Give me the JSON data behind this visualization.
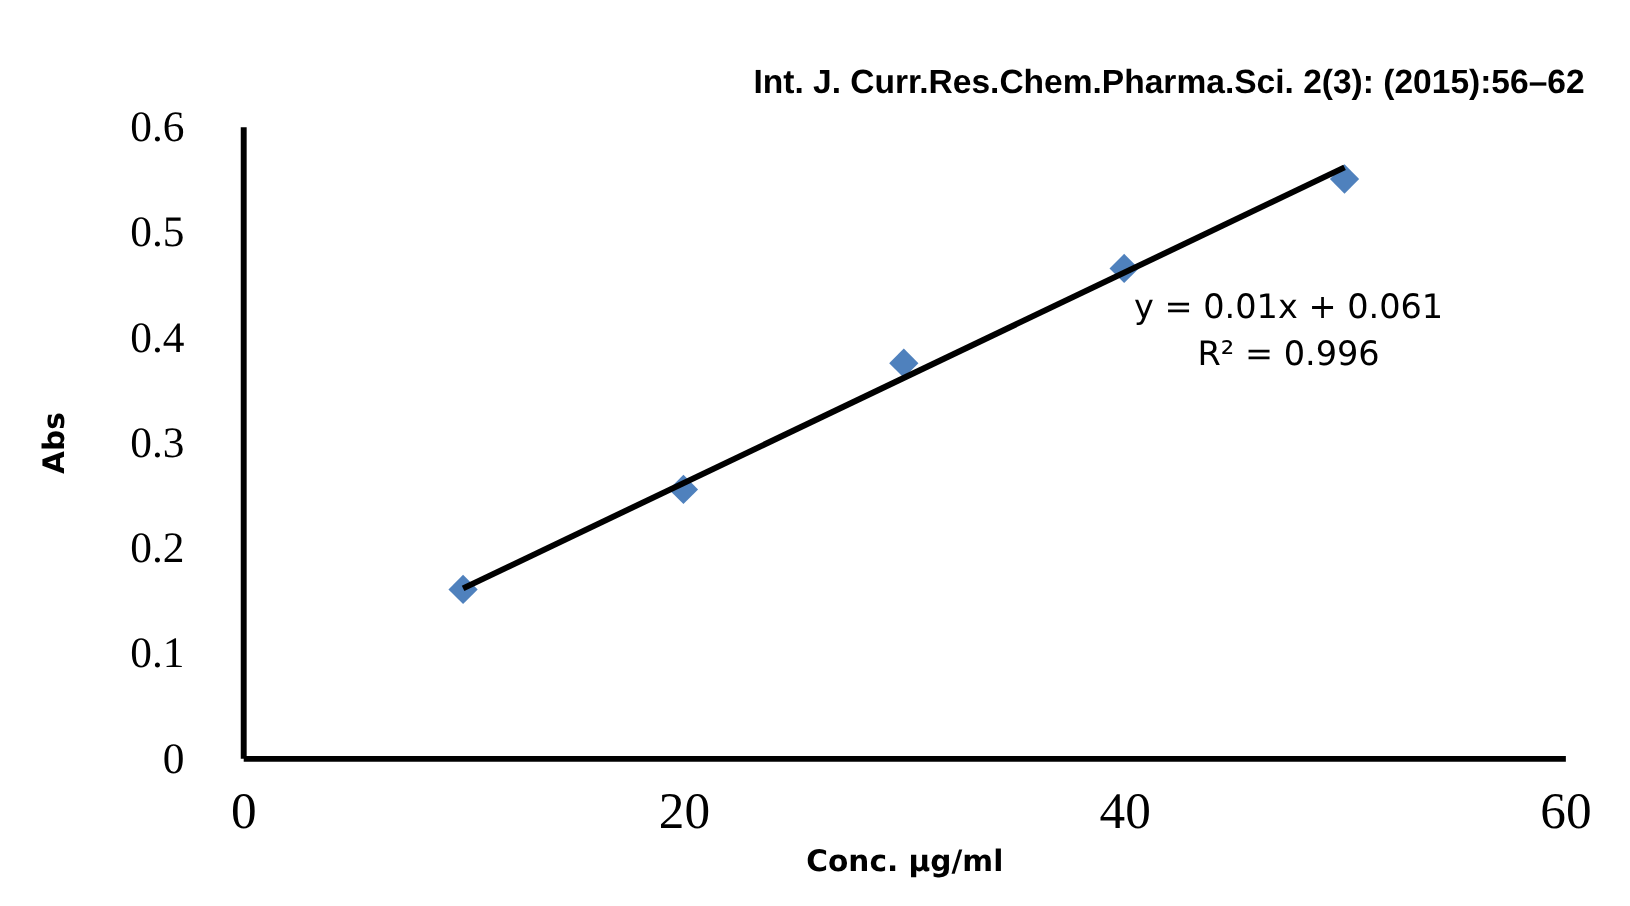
{
  "chart_data": {
    "type": "scatter",
    "xlabel": "Conc. µg/ml",
    "ylabel": "Abs",
    "x": [
      10,
      20,
      30,
      40,
      50
    ],
    "series": [
      {
        "color": "#4f81bd",
        "values": [
          0.16,
          0.255,
          0.375,
          0.465,
          0.55
        ],
        "marker": "diamond"
      },
      {
        "type": "line",
        "color": "#000000",
        "x": [
          10,
          50
        ],
        "values": [
          0.161,
          0.561
        ],
        "line_style": "solid"
      }
    ],
    "xlim": [
      0,
      60
    ],
    "xticks": [
      0,
      20,
      40,
      60
    ],
    "ylim": [
      0,
      0.6
    ],
    "yticks": [
      0,
      0.1,
      0.2,
      0.3,
      0.4,
      0.5,
      0.6
    ],
    "grid": false,
    "annotations": [
      "Int. J. Curr.Res.Chem.Pharma.Sci. 2(3): (2015):56–62",
      "y = 0.01x + 0.061",
      "R² = 0.996"
    ]
  }
}
